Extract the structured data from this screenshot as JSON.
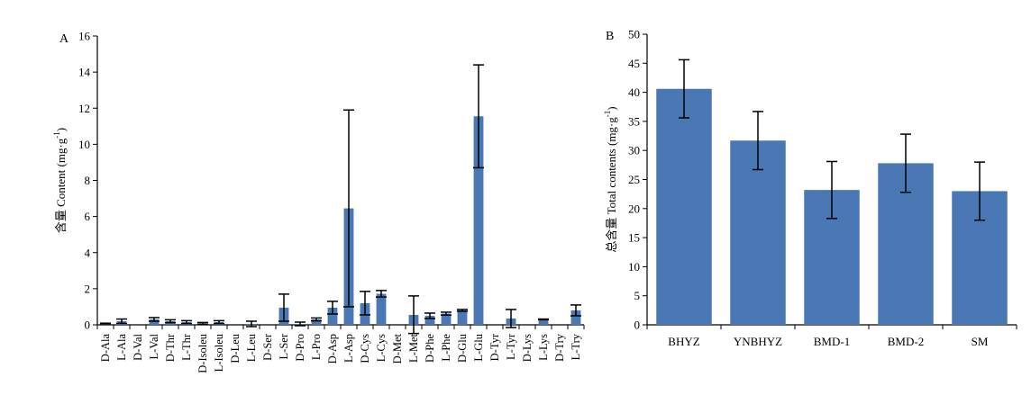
{
  "chart_data": [
    {
      "panel_label": "A",
      "type": "bar",
      "ylabel_prefix": "含量 Content (mg·g",
      "ylabel_sup": "-1",
      "ylabel_suffix": ")",
      "ylim": [
        0,
        16
      ],
      "yticks": [
        "0",
        "2",
        "4",
        "6",
        "8",
        "10",
        "12",
        "14",
        "16"
      ],
      "categories": [
        "D-Ala",
        "L-Ala",
        "D-Val",
        "L-Val",
        "D-Thr",
        "L-Thr",
        "D-Isoleu",
        "L-Isoleu",
        "D-Leu",
        "L-Leu",
        "D-Ser",
        "L-Ser",
        "D-Pro",
        "L-Pro",
        "D-Asp",
        "L-Asp",
        "D-Cys",
        "L-Cys",
        "D-Met",
        "L-Met",
        "D-Phe",
        "L-Phe",
        "D-Glu",
        "L-Glu",
        "D-Tyr",
        "L-Tyr",
        "D-Lys",
        "L-Lys",
        "D-Try",
        "L-Try"
      ],
      "values": [
        0.07,
        0.2,
        0,
        0.3,
        0.2,
        0.15,
        0.08,
        0.15,
        0,
        0.05,
        0,
        0.95,
        0.05,
        0.3,
        0.95,
        6.45,
        1.2,
        1.72,
        0,
        0.55,
        0.5,
        0.62,
        0.8,
        11.55,
        0,
        0.35,
        0,
        0.3,
        0,
        0.8
      ],
      "errors": [
        0.02,
        0.12,
        0,
        0.1,
        0.08,
        0.08,
        0.05,
        0.08,
        0,
        0.15,
        0,
        0.75,
        0.1,
        0.08,
        0.35,
        5.45,
        0.65,
        0.18,
        0,
        1.05,
        0.15,
        0.08,
        0.05,
        2.85,
        0,
        0.5,
        0,
        0.02,
        0,
        0.3
      ],
      "color": "#4a78b5"
    },
    {
      "panel_label": "B",
      "type": "bar",
      "ylabel_prefix": "总含量 Total contents (mg·g",
      "ylabel_sup": "-1",
      "ylabel_suffix": ")",
      "ylim": [
        0,
        50
      ],
      "yticks": [
        "0",
        "5",
        "10",
        "15",
        "20",
        "25",
        "30",
        "35",
        "40",
        "45",
        "50"
      ],
      "categories": [
        "BHYZ",
        "YNBHYZ",
        "BMD-1",
        "BMD-2",
        "SM"
      ],
      "values": [
        40.6,
        31.7,
        23.2,
        27.8,
        23.0
      ],
      "errors": [
        5.0,
        5.0,
        4.9,
        5.0,
        5.0
      ],
      "color": "#4a78b5"
    }
  ]
}
